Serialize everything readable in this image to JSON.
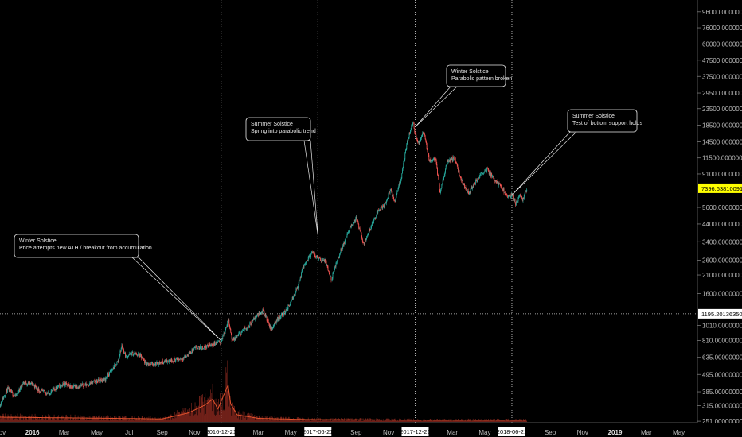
{
  "chart_data": {
    "type": "line",
    "title": "",
    "xlabel": "",
    "ylabel": "",
    "y_scale": "log",
    "ylim": [
      240,
      110000
    ],
    "x_range": [
      "2015-11-01",
      "2019-06-05"
    ],
    "grid": false,
    "y_ticks": [
      "96000.00000000",
      "76000.00000000",
      "60000.00000000",
      "47500.00000000",
      "37500.00000000",
      "29500.00000000",
      "23500.00000000",
      "18500.00000000",
      "14500.00000000",
      "11500.00000000",
      "9100.00000000",
      "5600.00000000",
      "4400.00000000",
      "3400.00000000",
      "2600.00000000",
      "2100.00000000",
      "1600.00000000",
      "1010.00000000",
      "810.00000000",
      "635.00000000",
      "495.00000000",
      "385.00000000",
      "315.00000000",
      "251.00000000"
    ],
    "x_ticks": [
      {
        "date": "2015-11-01",
        "label": "Nov",
        "bold": false
      },
      {
        "date": "2016-01-01",
        "label": "2016",
        "bold": true
      },
      {
        "date": "2016-03-01",
        "label": "Mar",
        "bold": false
      },
      {
        "date": "2016-05-01",
        "label": "May",
        "bold": false
      },
      {
        "date": "2016-07-01",
        "label": "Jul",
        "bold": false
      },
      {
        "date": "2016-09-01",
        "label": "Sep",
        "bold": false
      },
      {
        "date": "2016-11-01",
        "label": "Nov",
        "bold": false
      },
      {
        "date": "2017-03-01",
        "label": "Mar",
        "bold": false
      },
      {
        "date": "2017-05-01",
        "label": "May",
        "bold": false
      },
      {
        "date": "2017-09-01",
        "label": "Sep",
        "bold": false
      },
      {
        "date": "2017-11-01",
        "label": "Nov",
        "bold": false
      },
      {
        "date": "2018-03-01",
        "label": "Mar",
        "bold": false
      },
      {
        "date": "2018-05-01",
        "label": "May",
        "bold": false
      },
      {
        "date": "2018-09-01",
        "label": "Sep",
        "bold": false
      },
      {
        "date": "2018-11-01",
        "label": "Nov",
        "bold": false
      },
      {
        "date": "2019-01-01",
        "label": "2019",
        "bold": true
      },
      {
        "date": "2019-03-01",
        "label": "Mar",
        "bold": false
      },
      {
        "date": "2019-05-01",
        "label": "May",
        "bold": false
      }
    ],
    "solstice_lines": [
      {
        "date": "2016-12-21",
        "label": "2016-12-21"
      },
      {
        "date": "2017-06-21",
        "label": "2017-06-21"
      },
      {
        "date": "2017-12-21",
        "label": "2017-12-21"
      },
      {
        "date": "2018-06-21",
        "label": "2018-06-21"
      }
    ],
    "series": [
      {
        "values": [
          [
            "2015-11-01",
            320
          ],
          [
            "2015-11-15",
            400
          ],
          [
            "2015-11-30",
            360
          ],
          [
            "2015-12-15",
            440
          ],
          [
            "2016-01-01",
            430
          ],
          [
            "2016-01-15",
            390
          ],
          [
            "2016-02-01",
            375
          ],
          [
            "2016-02-15",
            410
          ],
          [
            "2016-03-01",
            430
          ],
          [
            "2016-03-15",
            415
          ],
          [
            "2016-04-01",
            420
          ],
          [
            "2016-04-15",
            430
          ],
          [
            "2016-05-01",
            450
          ],
          [
            "2016-05-15",
            455
          ],
          [
            "2016-05-30",
            530
          ],
          [
            "2016-06-10",
            600
          ],
          [
            "2016-06-17",
            750
          ],
          [
            "2016-06-25",
            640
          ],
          [
            "2016-07-05",
            670
          ],
          [
            "2016-07-20",
            660
          ],
          [
            "2016-08-01",
            580
          ],
          [
            "2016-08-15",
            575
          ],
          [
            "2016-09-01",
            590
          ],
          [
            "2016-09-15",
            610
          ],
          [
            "2016-10-01",
            615
          ],
          [
            "2016-10-15",
            640
          ],
          [
            "2016-11-01",
            720
          ],
          [
            "2016-11-15",
            730
          ],
          [
            "2016-12-01",
            755
          ],
          [
            "2016-12-15",
            790
          ],
          [
            "2016-12-21",
            800
          ],
          [
            "2017-01-04",
            1100
          ],
          [
            "2017-01-11",
            800
          ],
          [
            "2017-01-25",
            900
          ],
          [
            "2017-02-10",
            1000
          ],
          [
            "2017-02-25",
            1150
          ],
          [
            "2017-03-10",
            1250
          ],
          [
            "2017-03-25",
            950
          ],
          [
            "2017-04-05",
            1100
          ],
          [
            "2017-04-20",
            1220
          ],
          [
            "2017-05-01",
            1400
          ],
          [
            "2017-05-15",
            1800
          ],
          [
            "2017-05-25",
            2400
          ],
          [
            "2017-06-10",
            2900
          ],
          [
            "2017-06-21",
            2700
          ],
          [
            "2017-07-05",
            2550
          ],
          [
            "2017-07-16",
            1950
          ],
          [
            "2017-07-30",
            2750
          ],
          [
            "2017-08-10",
            3400
          ],
          [
            "2017-08-20",
            4100
          ],
          [
            "2017-09-01",
            4800
          ],
          [
            "2017-09-15",
            3300
          ],
          [
            "2017-09-30",
            4300
          ],
          [
            "2017-10-12",
            5400
          ],
          [
            "2017-10-25",
            5800
          ],
          [
            "2017-11-05",
            7300
          ],
          [
            "2017-11-12",
            6000
          ],
          [
            "2017-11-25",
            8700
          ],
          [
            "2017-12-07",
            15000
          ],
          [
            "2017-12-17",
            19500
          ],
          [
            "2017-12-21",
            16000
          ],
          [
            "2017-12-28",
            14000
          ],
          [
            "2018-01-06",
            17000
          ],
          [
            "2018-01-17",
            11000
          ],
          [
            "2018-01-28",
            11500
          ],
          [
            "2018-02-06",
            7000
          ],
          [
            "2018-02-20",
            11000
          ],
          [
            "2018-03-05",
            11500
          ],
          [
            "2018-03-18",
            8200
          ],
          [
            "2018-04-01",
            6900
          ],
          [
            "2018-04-12",
            7900
          ],
          [
            "2018-04-25",
            9300
          ],
          [
            "2018-05-05",
            9700
          ],
          [
            "2018-05-20",
            8400
          ],
          [
            "2018-06-01",
            7500
          ],
          [
            "2018-06-12",
            6600
          ],
          [
            "2018-06-21",
            6700
          ],
          [
            "2018-06-28",
            5900
          ],
          [
            "2018-07-05",
            6600
          ],
          [
            "2018-07-12",
            6300
          ],
          [
            "2018-07-19",
            7400
          ]
        ]
      }
    ],
    "volume": [
      [
        "2015-11-01",
        8
      ],
      [
        "2016-06-01",
        6
      ],
      [
        "2016-09-01",
        5
      ],
      [
        "2016-10-20",
        15
      ],
      [
        "2016-11-20",
        28
      ],
      [
        "2016-12-05",
        38
      ],
      [
        "2016-12-15",
        22
      ],
      [
        "2017-01-03",
        62
      ],
      [
        "2017-01-08",
        30
      ],
      [
        "2017-01-20",
        12
      ],
      [
        "2017-03-01",
        6
      ],
      [
        "2017-06-01",
        4
      ],
      [
        "2018-01-01",
        3
      ],
      [
        "2018-07-19",
        3
      ]
    ],
    "annotations": [
      {
        "lines": [
          "Winter Solstice",
          "Price attempts new ATH / breakout from accumulation"
        ],
        "target_date": "2016-12-21",
        "target_value": 810
      },
      {
        "lines": [
          "Summer Solstice",
          "Spring into parabolic trend"
        ],
        "target_date": "2017-06-21",
        "target_value": 3750
      },
      {
        "lines": [
          "Winter Solstice",
          "Parabolic pattern broken"
        ],
        "target_date": "2017-12-21",
        "target_value": 18000
      },
      {
        "lines": [
          "Summer Solstice",
          "Test of bottom support holds"
        ],
        "target_date": "2018-06-21",
        "target_value": 6700
      }
    ],
    "last_price_label": "7396.63810091",
    "crosshair_price_label": "1195.20136350",
    "crosshair_value": 1195.2013635
  },
  "colors": {
    "background": "#000000",
    "up": "#26a69a",
    "down": "#ef5350",
    "volume": "#c0382b",
    "volume_ma": "#e3532d",
    "last_price_bg": "#ffff00",
    "crosshair_bg": "#ffffff",
    "annotation_border": "#e8e8e8"
  }
}
